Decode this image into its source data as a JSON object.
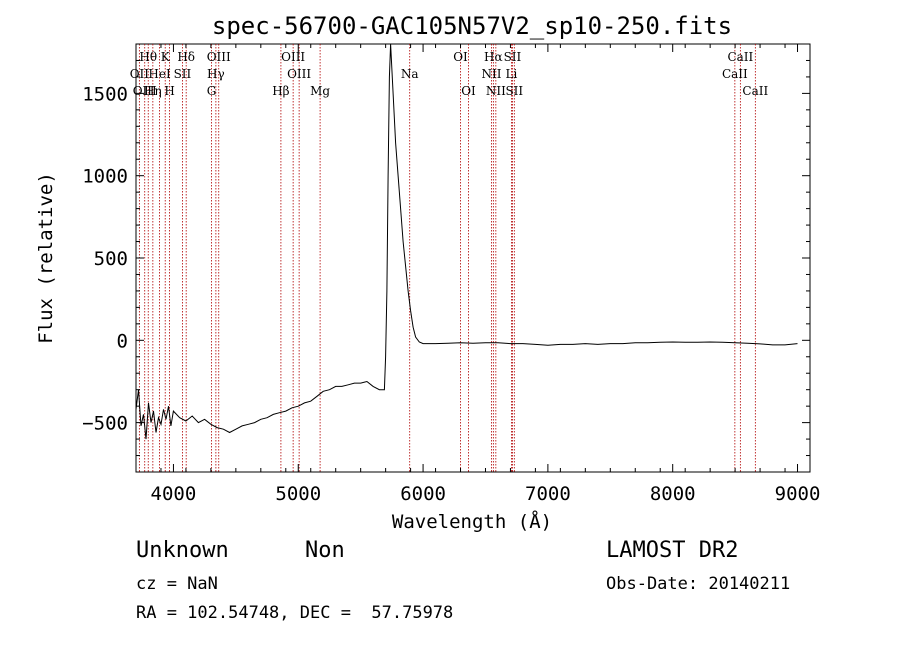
{
  "chart_data": {
    "type": "line",
    "title": "spec-56700-GAC105N57V2_sp10-250.fits",
    "xlabel": "Wavelength (Å)",
    "ylabel": "Flux (relative)",
    "xlim": [
      3700,
      9100
    ],
    "ylim": [
      -800,
      1800
    ],
    "xticks": [
      4000,
      5000,
      6000,
      7000,
      8000,
      9000
    ],
    "xtick_labels": [
      "4000",
      "5000",
      "6000",
      "7000",
      "8000",
      "9000"
    ],
    "yticks": [
      -500,
      0,
      500,
      1000,
      1500
    ],
    "ytick_labels": [
      "−500",
      "0",
      "500",
      "1000",
      "1500"
    ],
    "line_color": "#000000",
    "marker_color": "#b00000",
    "series": [
      {
        "values_xy": [
          [
            3700,
            -420
          ],
          [
            3720,
            -300
          ],
          [
            3740,
            -520
          ],
          [
            3760,
            -450
          ],
          [
            3780,
            -600
          ],
          [
            3800,
            -380
          ],
          [
            3820,
            -500
          ],
          [
            3840,
            -430
          ],
          [
            3860,
            -560
          ],
          [
            3880,
            -470
          ],
          [
            3900,
            -510
          ],
          [
            3920,
            -420
          ],
          [
            3940,
            -480
          ],
          [
            3960,
            -400
          ],
          [
            3980,
            -520
          ],
          [
            4000,
            -430
          ],
          [
            4050,
            -470
          ],
          [
            4100,
            -490
          ],
          [
            4150,
            -460
          ],
          [
            4200,
            -500
          ],
          [
            4250,
            -480
          ],
          [
            4300,
            -510
          ],
          [
            4350,
            -530
          ],
          [
            4400,
            -540
          ],
          [
            4450,
            -560
          ],
          [
            4500,
            -540
          ],
          [
            4550,
            -520
          ],
          [
            4600,
            -510
          ],
          [
            4650,
            -500
          ],
          [
            4700,
            -480
          ],
          [
            4750,
            -470
          ],
          [
            4800,
            -450
          ],
          [
            4850,
            -440
          ],
          [
            4900,
            -430
          ],
          [
            4950,
            -410
          ],
          [
            5000,
            -400
          ],
          [
            5050,
            -380
          ],
          [
            5100,
            -370
          ],
          [
            5150,
            -340
          ],
          [
            5200,
            -310
          ],
          [
            5250,
            -300
          ],
          [
            5300,
            -280
          ],
          [
            5350,
            -280
          ],
          [
            5400,
            -270
          ],
          [
            5450,
            -260
          ],
          [
            5500,
            -260
          ],
          [
            5550,
            -250
          ],
          [
            5600,
            -280
          ],
          [
            5650,
            -300
          ],
          [
            5690,
            -300
          ],
          [
            5700,
            -100
          ],
          [
            5710,
            300
          ],
          [
            5720,
            1000
          ],
          [
            5730,
            1600
          ],
          [
            5740,
            1800
          ],
          [
            5760,
            1500
          ],
          [
            5780,
            1200
          ],
          [
            5800,
            1000
          ],
          [
            5820,
            800
          ],
          [
            5840,
            600
          ],
          [
            5860,
            450
          ],
          [
            5880,
            300
          ],
          [
            5900,
            180
          ],
          [
            5920,
            80
          ],
          [
            5940,
            20
          ],
          [
            5970,
            -10
          ],
          [
            6000,
            -20
          ],
          [
            6100,
            -20
          ],
          [
            6200,
            -18
          ],
          [
            6300,
            -15
          ],
          [
            6400,
            -18
          ],
          [
            6500,
            -15
          ],
          [
            6600,
            -15
          ],
          [
            6700,
            -20
          ],
          [
            6800,
            -20
          ],
          [
            6900,
            -25
          ],
          [
            7000,
            -30
          ],
          [
            7100,
            -25
          ],
          [
            7200,
            -25
          ],
          [
            7300,
            -20
          ],
          [
            7400,
            -25
          ],
          [
            7500,
            -20
          ],
          [
            7600,
            -20
          ],
          [
            7700,
            -15
          ],
          [
            7800,
            -15
          ],
          [
            7900,
            -12
          ],
          [
            8000,
            -10
          ],
          [
            8100,
            -12
          ],
          [
            8200,
            -12
          ],
          [
            8300,
            -10
          ],
          [
            8400,
            -12
          ],
          [
            8500,
            -15
          ],
          [
            8600,
            -18
          ],
          [
            8700,
            -22
          ],
          [
            8800,
            -28
          ],
          [
            8900,
            -28
          ],
          [
            9000,
            -20
          ]
        ]
      }
    ],
    "lines": [
      {
        "label": "Hθ",
        "x": 3798,
        "row": 1
      },
      {
        "label": "OII",
        "x": 3727,
        "row": 2
      },
      {
        "label": "OIII",
        "x": 3770,
        "row": 3
      },
      {
        "label": "K",
        "x": 3934,
        "row": 1
      },
      {
        "label": "HeI",
        "x": 3889,
        "row": 2
      },
      {
        "label": "Hη",
        "x": 3835,
        "row": 3
      },
      {
        "label": "Hδ",
        "x": 4102,
        "row": 1
      },
      {
        "label": "SII",
        "x": 4072,
        "row": 2
      },
      {
        "label": "H",
        "x": 3969,
        "row": 3
      },
      {
        "label": "OIII",
        "x": 4363,
        "row": 1
      },
      {
        "label": "Hγ",
        "x": 4340,
        "row": 2
      },
      {
        "label": "G",
        "x": 4305,
        "row": 3
      },
      {
        "label": "OIII",
        "x": 4959,
        "row": 1
      },
      {
        "label": "OIII",
        "x": 5007,
        "row": 2
      },
      {
        "label": "Hβ",
        "x": 4861,
        "row": 3
      },
      {
        "label": "Mg",
        "x": 5175,
        "row": 3
      },
      {
        "label": "Na",
        "x": 5893,
        "row": 2
      },
      {
        "label": "OI",
        "x": 6300,
        "row": 1
      },
      {
        "label": "OI",
        "x": 6364,
        "row": 3
      },
      {
        "label": "Hα",
        "x": 6563,
        "row": 1
      },
      {
        "label": "NII",
        "x": 6548,
        "row": 2
      },
      {
        "label": "NII",
        "x": 6583,
        "row": 3
      },
      {
        "label": "SII",
        "x": 6716,
        "row": 1
      },
      {
        "label": "Li",
        "x": 6708,
        "row": 2
      },
      {
        "label": "SII",
        "x": 6731,
        "row": 3
      },
      {
        "label": "CaII",
        "x": 8542,
        "row": 1
      },
      {
        "label": "CaII",
        "x": 8498,
        "row": 2
      },
      {
        "label": "CaII",
        "x": 8662,
        "row": 3
      }
    ],
    "grid": false,
    "legend": "none"
  },
  "footer": {
    "object_class": "Unknown",
    "object_subclass": "Non",
    "survey": "LAMOST DR2",
    "cz": "cz = NaN",
    "obs_date": "Obs-Date: 20140211",
    "coords": "RA = 102.54748, DEC =  57.75978"
  }
}
